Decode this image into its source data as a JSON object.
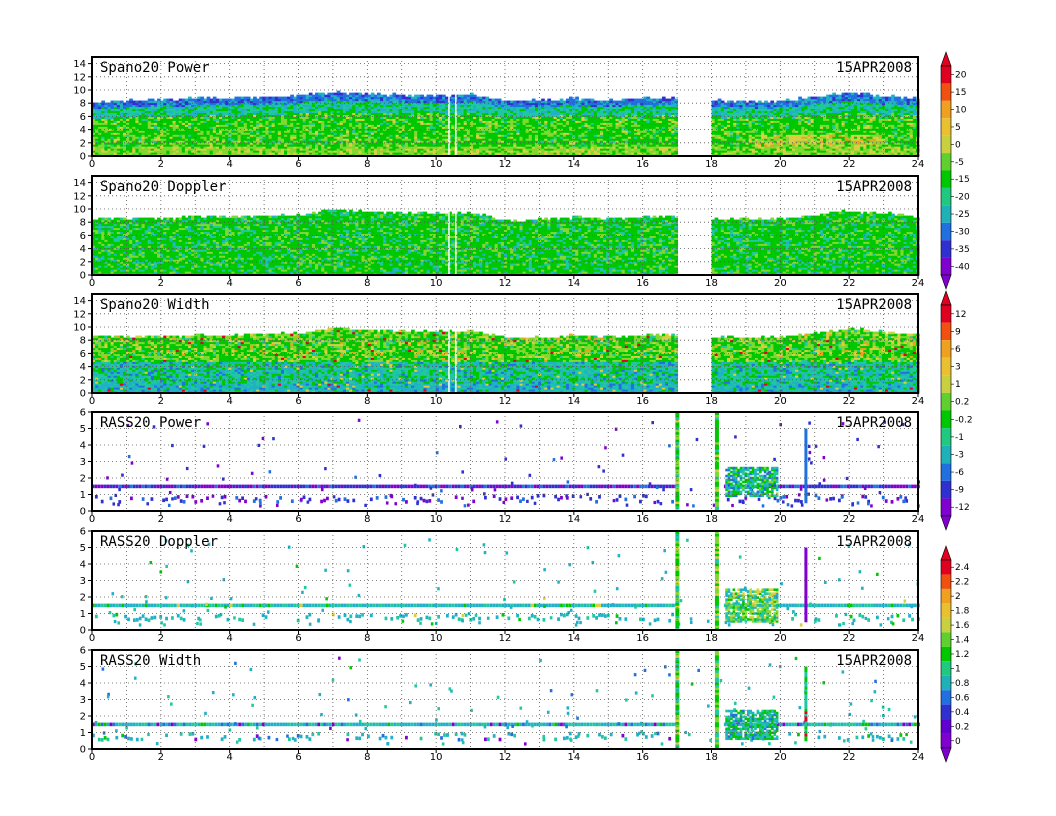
{
  "chart_data": [
    {
      "type": "heatmap",
      "title": "Spano20  Power",
      "date": "15APR2008",
      "xlim": [
        0,
        24
      ],
      "ylim": [
        0,
        15
      ],
      "xticks": [
        "0",
        "2",
        "4",
        "6",
        "8",
        "10",
        "12",
        "14",
        "16",
        "18",
        "20",
        "22",
        "24"
      ],
      "yticks": [
        "0",
        "2",
        "4",
        "6",
        "8",
        "10",
        "12",
        "14"
      ],
      "grid": true,
      "pattern": "profiler",
      "field": "power",
      "data_gaps": [
        [
          17.0,
          17.95
        ]
      ],
      "top_height_profile": {
        "x": [
          0,
          2,
          4,
          6,
          7,
          8,
          10,
          11,
          12,
          13,
          14,
          15,
          16,
          17,
          18,
          19,
          20,
          21,
          22,
          23,
          24
        ],
        "y": [
          8,
          8.5,
          8.7,
          9,
          9.6,
          9.2,
          9,
          9.2,
          8.2,
          8.3,
          8.6,
          8.4,
          8.7,
          8.7,
          8.3,
          8.2,
          8.2,
          8.9,
          9.5,
          9,
          8.6
        ]
      }
    },
    {
      "type": "heatmap",
      "title": "Spano20  Doppler",
      "date": "15APR2008",
      "xlim": [
        0,
        24
      ],
      "ylim": [
        0,
        15
      ],
      "xticks": [
        "0",
        "2",
        "4",
        "6",
        "8",
        "10",
        "12",
        "14",
        "16",
        "18",
        "20",
        "22",
        "24"
      ],
      "yticks": [
        "0",
        "2",
        "4",
        "6",
        "8",
        "10",
        "12",
        "14"
      ],
      "grid": true,
      "pattern": "profiler",
      "field": "doppler",
      "data_gaps": [
        [
          17.0,
          17.95
        ]
      ],
      "top_height_profile": {
        "x": [
          0,
          2,
          4,
          6,
          7,
          8,
          10,
          11,
          12,
          13,
          14,
          15,
          16,
          17,
          18,
          19,
          20,
          21,
          22,
          23,
          24
        ],
        "y": [
          8.5,
          8.5,
          8.7,
          9,
          9.8,
          9.4,
          9.2,
          9.3,
          8.2,
          8.3,
          8.6,
          8.4,
          8.7,
          8.7,
          8.4,
          8.3,
          8.3,
          9,
          9.6,
          9.2,
          8.6
        ]
      }
    },
    {
      "type": "heatmap",
      "title": "Spano20  Width",
      "date": "15APR2008",
      "xlim": [
        0,
        24
      ],
      "ylim": [
        0,
        15
      ],
      "xticks": [
        "0",
        "2",
        "4",
        "6",
        "8",
        "10",
        "12",
        "14",
        "16",
        "18",
        "20",
        "22",
        "24"
      ],
      "yticks": [
        "0",
        "2",
        "4",
        "6",
        "8",
        "10",
        "12",
        "14"
      ],
      "grid": true,
      "pattern": "profiler",
      "field": "width",
      "data_gaps": [
        [
          17.0,
          17.95
        ]
      ],
      "top_height_profile": {
        "x": [
          0,
          2,
          4,
          6,
          7,
          8,
          10,
          11,
          12,
          13,
          14,
          15,
          16,
          17,
          18,
          19,
          20,
          21,
          22,
          23,
          24
        ],
        "y": [
          8.5,
          8.5,
          8.7,
          9,
          9.8,
          9.4,
          9.2,
          9.3,
          8.2,
          8.3,
          8.6,
          8.4,
          8.7,
          8.7,
          8.4,
          8.3,
          8.3,
          9,
          9.6,
          9.2,
          8.6
        ]
      }
    },
    {
      "type": "heatmap",
      "title": "RASS20  Power",
      "date": "15APR2008",
      "xlim": [
        0,
        24
      ],
      "ylim": [
        0,
        6
      ],
      "xticks": [
        "0",
        "2",
        "4",
        "6",
        "8",
        "10",
        "12",
        "14",
        "16",
        "18",
        "20",
        "22",
        "24"
      ],
      "yticks": [
        "0",
        "1",
        "2",
        "3",
        "4",
        "5",
        "6"
      ],
      "grid": true,
      "pattern": "rass",
      "field": "rass_power",
      "band_heights": [
        1.5,
        0.75
      ],
      "vertical_streaks": [
        16.95,
        18.1
      ],
      "spike": 20.7,
      "cluster": {
        "x": [
          18.4,
          19.9
        ],
        "y": [
          1.0,
          2.7
        ]
      }
    },
    {
      "type": "heatmap",
      "title": "RASS20  Doppler",
      "date": "15APR2008",
      "xlim": [
        0,
        24
      ],
      "ylim": [
        0,
        6
      ],
      "xticks": [
        "0",
        "2",
        "4",
        "6",
        "8",
        "10",
        "12",
        "14",
        "16",
        "18",
        "20",
        "22",
        "24"
      ],
      "yticks": [
        "0",
        "1",
        "2",
        "3",
        "4",
        "5",
        "6"
      ],
      "grid": true,
      "pattern": "rass",
      "field": "rass_doppler",
      "band_heights": [
        1.5,
        0.75
      ],
      "vertical_streaks": [
        16.95,
        18.1
      ],
      "spike": 20.7,
      "cluster": {
        "x": [
          18.4,
          19.9
        ],
        "y": [
          0.6,
          2.6
        ]
      }
    },
    {
      "type": "heatmap",
      "title": "RASS20  Width",
      "date": "15APR2008",
      "xlim": [
        0,
        24
      ],
      "ylim": [
        0,
        6
      ],
      "xticks": [
        "0",
        "2",
        "4",
        "6",
        "8",
        "10",
        "12",
        "14",
        "16",
        "18",
        "20",
        "22",
        "24"
      ],
      "yticks": [
        "0",
        "1",
        "2",
        "3",
        "4",
        "5",
        "6"
      ],
      "grid": true,
      "pattern": "rass",
      "field": "rass_width",
      "band_heights": [
        1.5,
        0.75
      ],
      "vertical_streaks": [
        16.95,
        18.1
      ],
      "spike": 20.7,
      "cluster": {
        "x": [
          18.4,
          19.9
        ],
        "y": [
          0.7,
          2.5
        ]
      }
    }
  ],
  "colorbars": [
    {
      "labels": [
        "20",
        "15",
        "10",
        "5",
        "0",
        "-5",
        "-15",
        "-20",
        "-25",
        "-30",
        "-35",
        "-40"
      ],
      "colors": [
        "#e00020",
        "#f05010",
        "#f0a020",
        "#e8c030",
        "#c8d040",
        "#60d030",
        "#00c800",
        "#20c880",
        "#20b0b8",
        "#2070e0",
        "#3030d0",
        "#8000d0"
      ]
    },
    {
      "labels": [
        "12",
        "9",
        "6",
        "3",
        "1",
        "0.2",
        "-0.2",
        "-1",
        "-3",
        "-6",
        "-9",
        "-12"
      ],
      "colors": [
        "#e00020",
        "#f05010",
        "#f0a020",
        "#e8c030",
        "#c8d040",
        "#60d030",
        "#00c800",
        "#20c880",
        "#20b0b8",
        "#2070e0",
        "#3030d0",
        "#8000d0"
      ]
    },
    {
      "labels": [
        "2.4",
        "2.2",
        "2",
        "1.8",
        "1.6",
        "1.4",
        "1.2",
        "1",
        "0.8",
        "0.6",
        "0.4",
        "0.2",
        "0"
      ],
      "colors": [
        "#e00020",
        "#f05010",
        "#f0a020",
        "#e8c030",
        "#c8d040",
        "#60d030",
        "#00c800",
        "#20c880",
        "#20b0b8",
        "#2070e0",
        "#3030d0",
        "#6000d0",
        "#8000d0"
      ]
    }
  ],
  "palette": {
    "red": "#e00020",
    "orange": "#f0a020",
    "yellow": "#d8d040",
    "green": "#00c800",
    "lime": "#80d830",
    "teal": "#20c8a0",
    "cyan": "#20b0c8",
    "blue": "#2070e0",
    "darkblue": "#3030d0",
    "purple": "#8000d0"
  }
}
